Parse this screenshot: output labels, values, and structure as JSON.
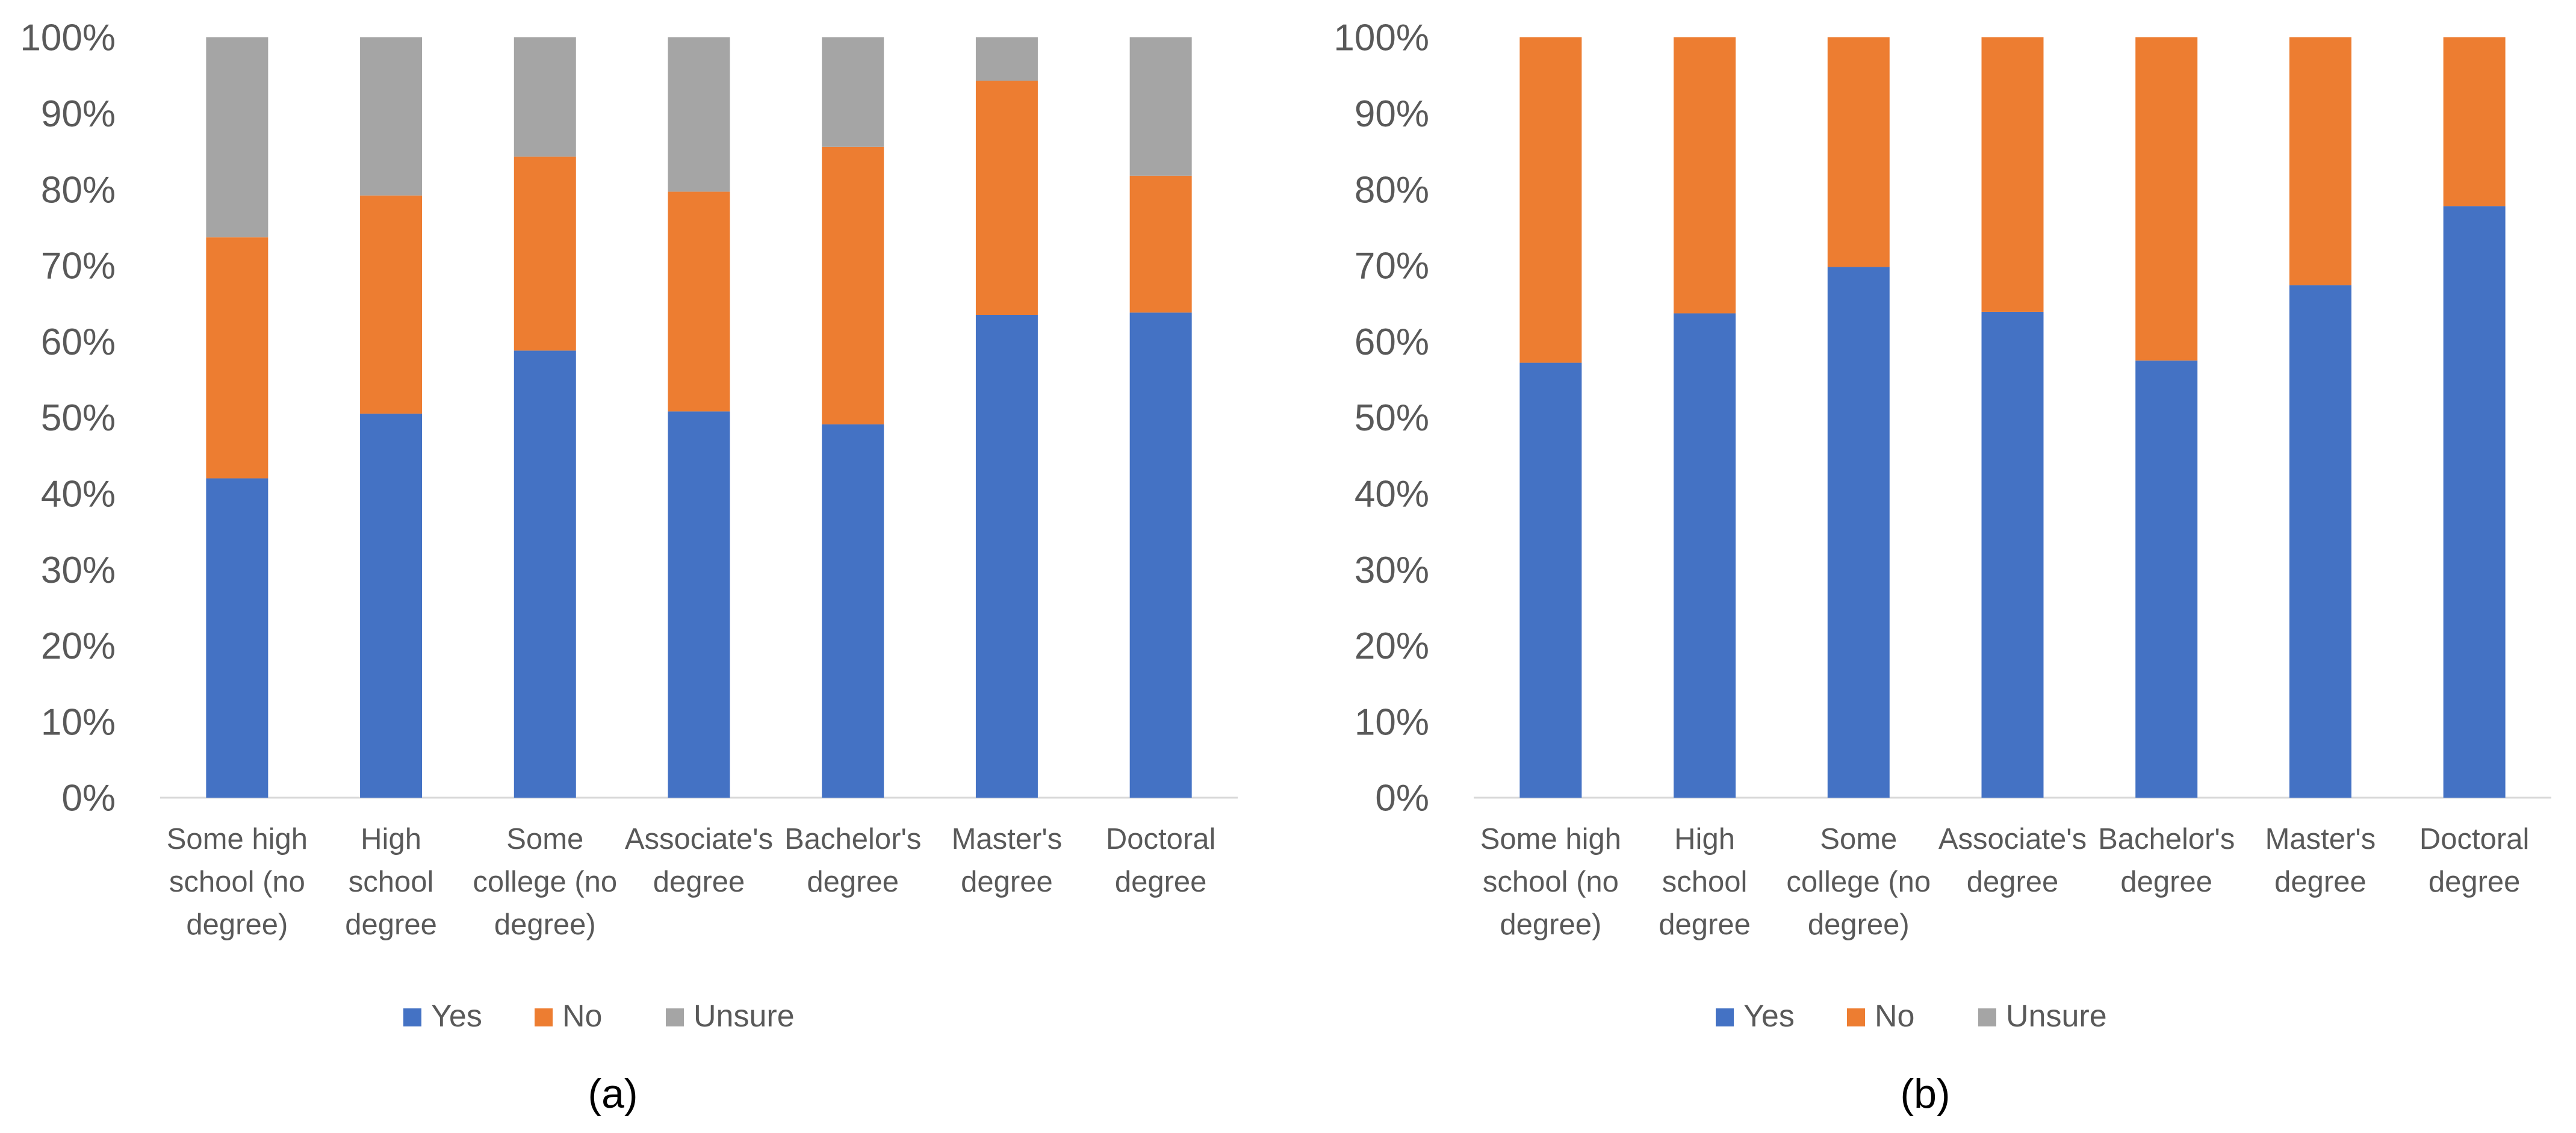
{
  "colors": {
    "yes": "#4472C4",
    "no": "#ED7D31",
    "unsure": "#A5A5A5",
    "text": "#595959",
    "axis": "#D9D9D9"
  },
  "chart_data": [
    {
      "type": "bar",
      "stacked": true,
      "panel_label": "(a)",
      "title": "",
      "xlabel": "",
      "ylabel": "",
      "ylim": [
        0,
        100
      ],
      "y_ticks": [
        "0%",
        "10%",
        "20%",
        "30%",
        "40%",
        "50%",
        "60%",
        "70%",
        "80%",
        "90%",
        "100%"
      ],
      "categories": [
        [
          "Some high",
          "school (no",
          "degree)"
        ],
        [
          "High",
          "school",
          "degree"
        ],
        [
          "Some",
          "college (no",
          "degree)"
        ],
        [
          "Associate's",
          "degree"
        ],
        [
          "Bachelor's",
          "degree"
        ],
        [
          "Master's",
          "degree"
        ],
        [
          "Doctoral",
          "degree"
        ]
      ],
      "series": [
        {
          "name": "Yes",
          "color_key": "yes",
          "values": [
            42,
            50.5,
            58.8,
            50.8,
            49.1,
            63.5,
            63.8
          ]
        },
        {
          "name": "No",
          "color_key": "no",
          "values": [
            31.7,
            28.7,
            25.5,
            28.9,
            36.5,
            30.8,
            18
          ]
        },
        {
          "name": "Unsure",
          "color_key": "unsure",
          "values": [
            26.3,
            20.8,
            15.7,
            20.3,
            14.4,
            5.7,
            18.2
          ]
        }
      ],
      "legend": [
        "Yes",
        "No",
        "Unsure"
      ],
      "legend_position": "bottom"
    },
    {
      "type": "bar",
      "stacked": true,
      "panel_label": "(b)",
      "title": "",
      "xlabel": "",
      "ylabel": "",
      "ylim": [
        0,
        100
      ],
      "y_ticks": [
        "0%",
        "10%",
        "20%",
        "30%",
        "40%",
        "50%",
        "60%",
        "70%",
        "80%",
        "90%",
        "100%"
      ],
      "categories": [
        [
          "Some high",
          "school (no",
          "degree)"
        ],
        [
          "High",
          "school",
          "degree"
        ],
        [
          "Some",
          "college (no",
          "degree)"
        ],
        [
          "Associate's",
          "degree"
        ],
        [
          "Bachelor's",
          "degree"
        ],
        [
          "Master's",
          "degree"
        ],
        [
          "Doctoral",
          "degree"
        ]
      ],
      "series": [
        {
          "name": "Yes",
          "color_key": "yes",
          "values": [
            57.2,
            63.7,
            69.8,
            63.9,
            57.5,
            67.4,
            77.8
          ]
        },
        {
          "name": "No",
          "color_key": "no",
          "values": [
            42.8,
            36.3,
            30.2,
            36.1,
            42.5,
            32.6,
            22.2
          ]
        },
        {
          "name": "Unsure",
          "color_key": "unsure",
          "values": [
            0,
            0,
            0,
            0,
            0,
            0,
            0
          ]
        }
      ],
      "legend": [
        "Yes",
        "No",
        "Unsure"
      ],
      "legend_position": "bottom"
    }
  ]
}
